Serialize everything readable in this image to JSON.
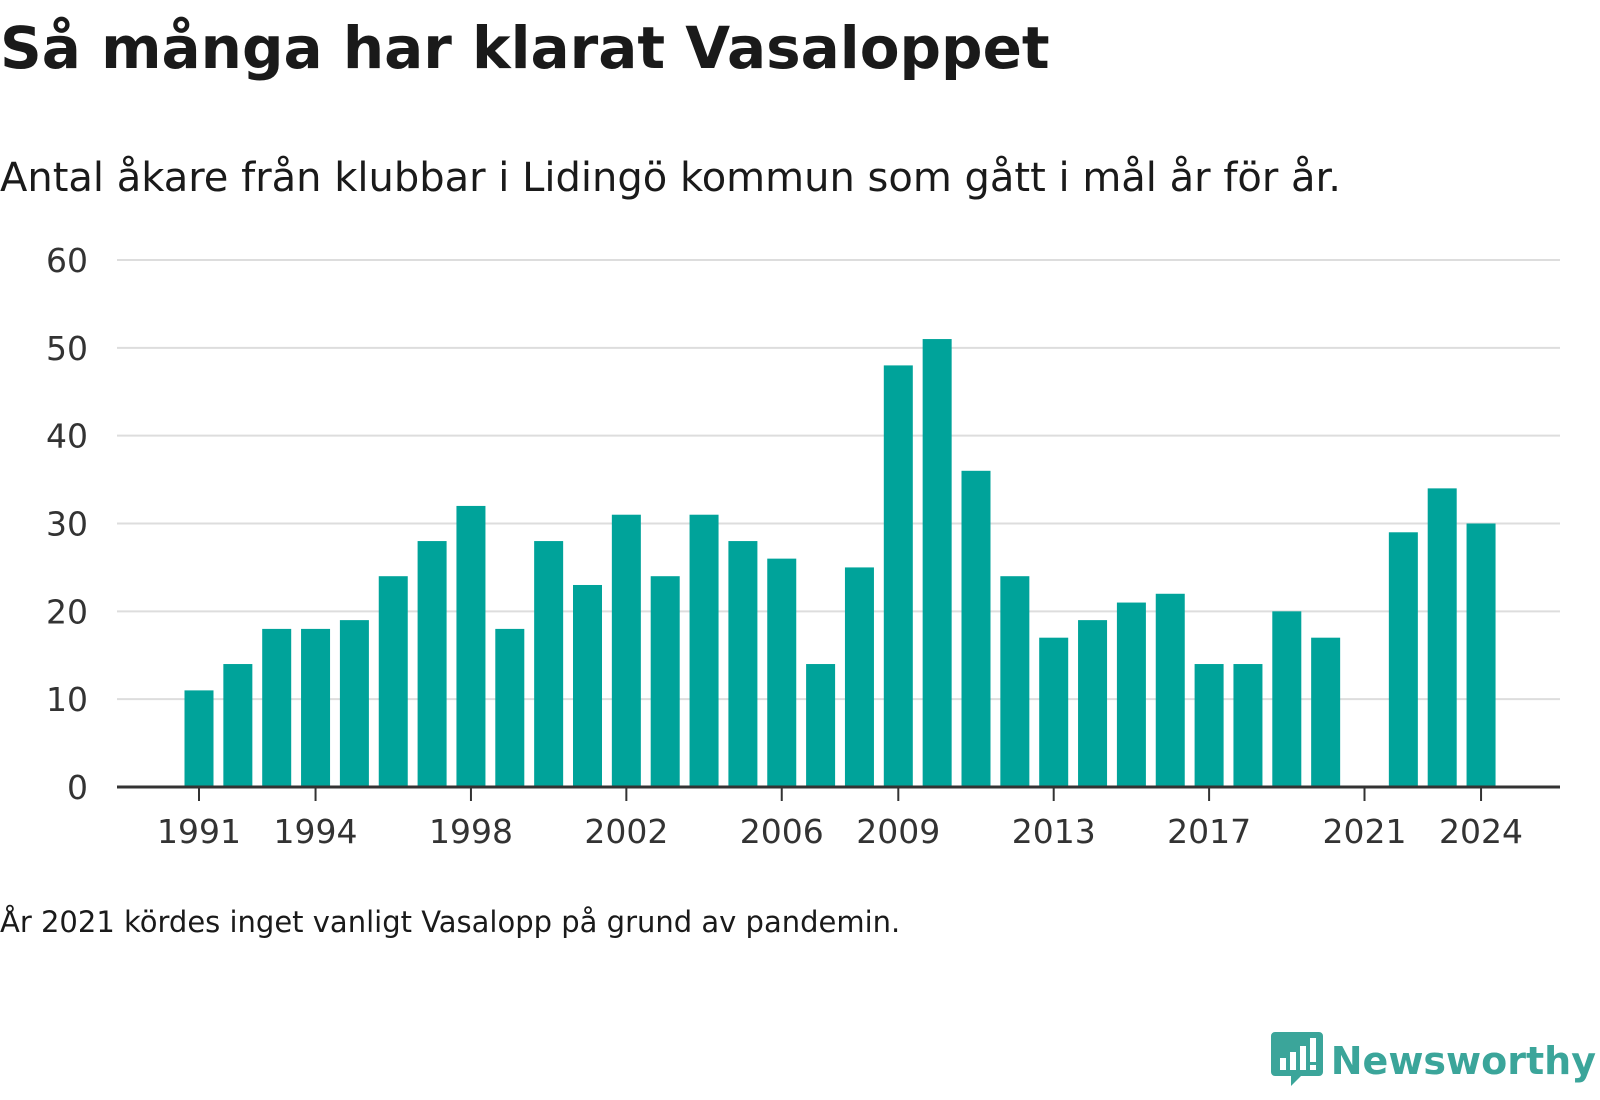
{
  "header": {
    "title": "Så många har klarat Vasaloppet",
    "subtitle": "Antal åkare från klubbar i Lidingö kommun som gått i mål år för år."
  },
  "footer": {
    "note": "År 2021 kördes inget vanligt Vasalopp på grund av pandemin.",
    "brand": "Newsworthy",
    "brand_icon": "bar-chart-speech-bubble-icon"
  },
  "colors": {
    "bar": "#00a39a",
    "grid": "#dddddd",
    "axis": "#333333",
    "text": "#1a1a1a",
    "brand": "#3ba59a"
  },
  "chart_data": {
    "type": "bar",
    "title": "Så många har klarat Vasaloppet",
    "subtitle": "Antal åkare från klubbar i Lidingö kommun som gått i mål år för år.",
    "xlabel": "",
    "ylabel": "",
    "ylim": [
      0,
      60
    ],
    "y_ticks": [
      0,
      10,
      20,
      30,
      40,
      50,
      60
    ],
    "x_tick_labels": [
      "1991",
      "1994",
      "1998",
      "2002",
      "2006",
      "2009",
      "2013",
      "2017",
      "2021",
      "2024"
    ],
    "grid": true,
    "legend": "none",
    "categories": [
      "1991",
      "1992",
      "1993",
      "1994",
      "1995",
      "1996",
      "1997",
      "1998",
      "1999",
      "2000",
      "2001",
      "2002",
      "2003",
      "2004",
      "2005",
      "2006",
      "2007",
      "2008",
      "2009",
      "2010",
      "2011",
      "2012",
      "2013",
      "2014",
      "2015",
      "2016",
      "2017",
      "2018",
      "2019",
      "2020",
      "2021",
      "2022",
      "2023",
      "2024"
    ],
    "values": [
      11,
      14,
      18,
      18,
      19,
      24,
      28,
      32,
      18,
      28,
      23,
      31,
      24,
      31,
      28,
      26,
      14,
      25,
      48,
      51,
      36,
      24,
      17,
      19,
      21,
      22,
      14,
      14,
      20,
      17,
      null,
      29,
      34,
      30
    ]
  }
}
